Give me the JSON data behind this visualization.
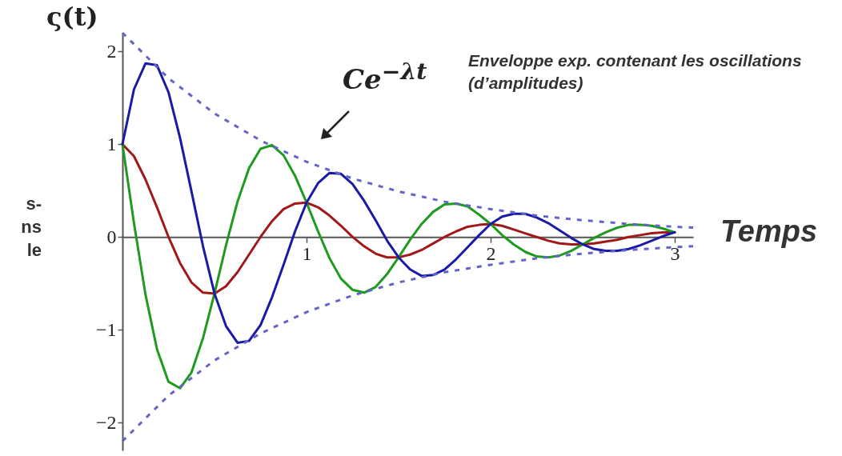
{
  "chart_data": {
    "type": "line",
    "xlabel": "Temps",
    "ylabel": "ς(t)",
    "x": [
      0,
      0.0625,
      0.125,
      0.1875,
      0.25,
      0.3125,
      0.375,
      0.4375,
      0.5,
      0.5625,
      0.625,
      0.6875,
      0.75,
      0.8125,
      0.875,
      0.9375,
      1,
      1.0625,
      1.125,
      1.1875,
      1.25,
      1.3125,
      1.375,
      1.4375,
      1.5,
      1.5625,
      1.625,
      1.6875,
      1.75,
      1.8125,
      1.875,
      1.9375,
      2,
      2.0625,
      2.125,
      2.1875,
      2.25,
      2.3125,
      2.375,
      2.4375,
      2.5,
      2.5625,
      2.625,
      2.6875,
      2.75,
      2.8125,
      2.875,
      2.9375,
      3
    ],
    "series": [
      {
        "color": "#a01818",
        "values": [
          1,
          0.87,
          0.62,
          0.32,
          0,
          -0.28,
          -0.49,
          -0.6,
          -0.61,
          -0.53,
          -0.38,
          -0.19,
          0,
          0.17,
          0.3,
          0.36,
          0.37,
          0.32,
          0.23,
          0.12,
          0,
          -0.1,
          -0.18,
          -0.22,
          -0.22,
          -0.19,
          -0.14,
          -0.07,
          0,
          0.06,
          0.11,
          0.13,
          0.14,
          0.12,
          0.08,
          0.04,
          0,
          -0.04,
          -0.07,
          -0.08,
          -0.08,
          -0.07,
          -0.05,
          -0.03,
          0,
          0.02,
          0.04,
          0.05,
          0.05
        ]
      },
      {
        "color": "#1e9a1e",
        "values": [
          1,
          0.15,
          -0.62,
          -1.21,
          -1.56,
          -1.63,
          -1.46,
          -1.09,
          -0.61,
          -0.09,
          0.38,
          0.74,
          0.95,
          0.99,
          0.88,
          0.66,
          0.37,
          0.06,
          -0.23,
          -0.45,
          -0.57,
          -0.6,
          -0.54,
          -0.4,
          -0.22,
          -0.03,
          0.14,
          0.27,
          0.35,
          0.36,
          0.33,
          0.24,
          0.14,
          0.02,
          -0.08,
          -0.16,
          -0.21,
          -0.22,
          -0.2,
          -0.15,
          -0.08,
          -0.01,
          0.05,
          0.1,
          0.13,
          0.13,
          0.12,
          0.09,
          0.05
        ]
      },
      {
        "color": "#1a1aa8",
        "values": [
          1,
          1.59,
          1.87,
          1.85,
          1.56,
          1.07,
          0.49,
          -0.1,
          -0.61,
          -0.96,
          -1.14,
          -1.12,
          -0.95,
          -0.65,
          -0.3,
          0.06,
          0.37,
          0.58,
          0.69,
          0.68,
          0.57,
          0.39,
          0.18,
          -0.04,
          -0.22,
          -0.35,
          -0.42,
          -0.41,
          -0.35,
          -0.24,
          -0.11,
          0.02,
          0.14,
          0.22,
          0.25,
          0.25,
          0.21,
          0.15,
          0.07,
          -0.01,
          -0.08,
          -0.13,
          -0.15,
          -0.15,
          -0.13,
          -0.09,
          -0.04,
          0.01,
          0.05
        ]
      },
      {
        "color": "#6464c8",
        "line_style": "dashed",
        "x": [
          0,
          0.25,
          0.5,
          0.75,
          1,
          1.25,
          1.5,
          1.75,
          2,
          2.25,
          2.5,
          2.75,
          3,
          3.1
        ],
        "values": [
          2.2,
          1.71,
          1.33,
          1.04,
          0.81,
          0.63,
          0.49,
          0.38,
          0.3,
          0.23,
          0.18,
          0.14,
          0.11,
          0.1
        ]
      },
      {
        "color": "#6464c8",
        "line_style": "dashed",
        "x": [
          0,
          0.25,
          0.5,
          0.75,
          1,
          1.25,
          1.5,
          1.75,
          2,
          2.25,
          2.5,
          2.75,
          3,
          3.1
        ],
        "values": [
          -2.2,
          -1.71,
          -1.33,
          -1.04,
          -0.81,
          -0.63,
          -0.49,
          -0.38,
          -0.3,
          -0.23,
          -0.18,
          -0.14,
          -0.11,
          -0.1
        ]
      }
    ],
    "xlim": [
      0,
      3.1
    ],
    "xticks": [
      1,
      2,
      3
    ],
    "ylim": [
      -2.3,
      2.2
    ],
    "yticks": [
      -2,
      -1,
      0,
      1,
      2
    ],
    "grid": false,
    "line_style": "solid",
    "annotations": [
      "Ce$^{−λt}$",
      "Enveloppe exp. contenant les oscillations (d’amplitudes)",
      "s-\nns\nle"
    ]
  }
}
